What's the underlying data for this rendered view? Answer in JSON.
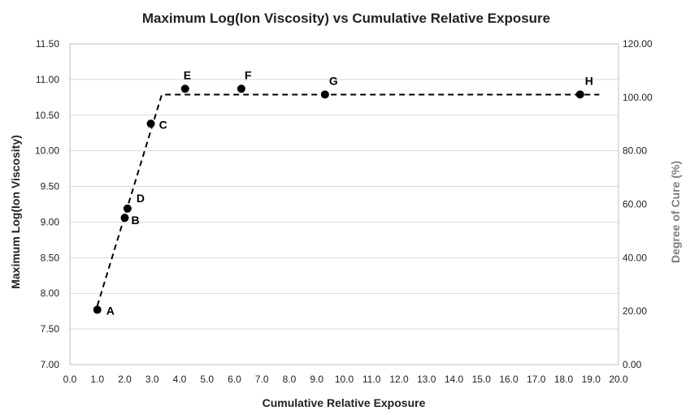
{
  "chart_data": {
    "type": "scatter",
    "title": "Maximum Log(Ion Viscosity) vs Cumulative Relative Exposure",
    "xlabel": "Cumulative Relative Exposure",
    "ylabel": "Maximum Log(Ion Viscosity)",
    "y2label": "Degree of Cure (%)",
    "xlim": [
      0,
      20
    ],
    "ylim": [
      7.0,
      11.5
    ],
    "y2lim": [
      0,
      120
    ],
    "x_ticks": [
      "0.0",
      "1.0",
      "2.0",
      "3.0",
      "4.0",
      "5.0",
      "6.0",
      "7.0",
      "8.0",
      "9.0",
      "10.0",
      "11.0",
      "12.0",
      "13.0",
      "14.0",
      "15.0",
      "16.0",
      "17.0",
      "18.0",
      "19.0",
      "20.0"
    ],
    "y_ticks": [
      "7.00",
      "7.50",
      "8.00",
      "8.50",
      "9.00",
      "9.50",
      "10.00",
      "10.50",
      "11.00",
      "11.50"
    ],
    "y2_ticks": [
      "0.00",
      "20.00",
      "40.00",
      "60.00",
      "80.00",
      "100.00",
      "120.00"
    ],
    "grid": "horizontal",
    "legend": "none",
    "marker_color": "#000000",
    "series": [
      {
        "points": [
          {
            "label": "A",
            "x": 1.0,
            "y": 7.77
          },
          {
            "label": "B",
            "x": 2.0,
            "y": 9.06
          },
          {
            "label": "D",
            "x": 2.1,
            "y": 9.19
          },
          {
            "label": "C",
            "x": 2.95,
            "y": 10.38
          },
          {
            "label": "E",
            "x": 4.2,
            "y": 10.87
          },
          {
            "label": "F",
            "x": 6.25,
            "y": 10.87
          },
          {
            "label": "G",
            "x": 9.3,
            "y": 10.79
          },
          {
            "label": "H",
            "x": 18.6,
            "y": 10.79
          }
        ]
      }
    ],
    "trend_line": {
      "style": "dashed",
      "color": "#000000",
      "points": [
        {
          "x": 1.0,
          "y2": 22.0
        },
        {
          "x": 3.35,
          "y2": 101.0
        },
        {
          "x": 19.3,
          "y2": 101.0
        }
      ]
    }
  }
}
